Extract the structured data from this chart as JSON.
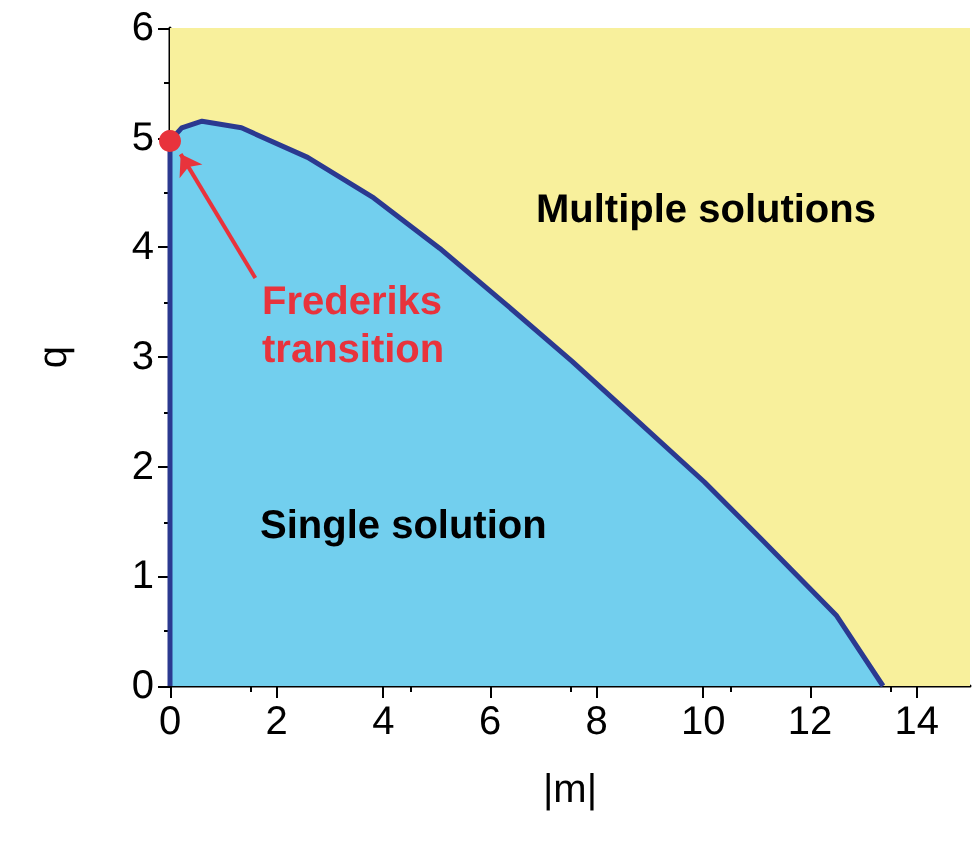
{
  "chart_data": {
    "type": "area",
    "xlabel": "|m|",
    "ylabel": "q",
    "xlim": [
      0,
      15
    ],
    "xticks": [
      0,
      2,
      4,
      6,
      8,
      10,
      12,
      14
    ],
    "ylim": [
      0,
      6
    ],
    "yticks": [
      0,
      1,
      2,
      3,
      4,
      5,
      6
    ],
    "grid": false,
    "bands": [
      {
        "axis": "y",
        "from": 0,
        "to": 6,
        "color": "#f8f09c"
      }
    ],
    "series": [
      {
        "color": "#72cfee",
        "x": [
          0,
          0,
          0.22,
          0.6,
          1.34,
          2.58,
          3.82,
          5.06,
          6.3,
          7.54,
          8.78,
          10.02,
          11.27,
          12.5,
          13.37
        ],
        "values": [
          0,
          4.97,
          5.09,
          5.15,
          5.09,
          4.82,
          4.45,
          3.99,
          3.48,
          2.96,
          2.41,
          1.86,
          1.25,
          0.64,
          0
        ]
      },
      {
        "type": "scatter",
        "color": "#e8333c",
        "x": [
          0
        ],
        "values": [
          4.97
        ]
      }
    ],
    "annotations": [
      {
        "text": "Frederiks transition",
        "x": 0,
        "y": 4.97
      },
      "Multiple solutions",
      "Single solution"
    ]
  }
}
